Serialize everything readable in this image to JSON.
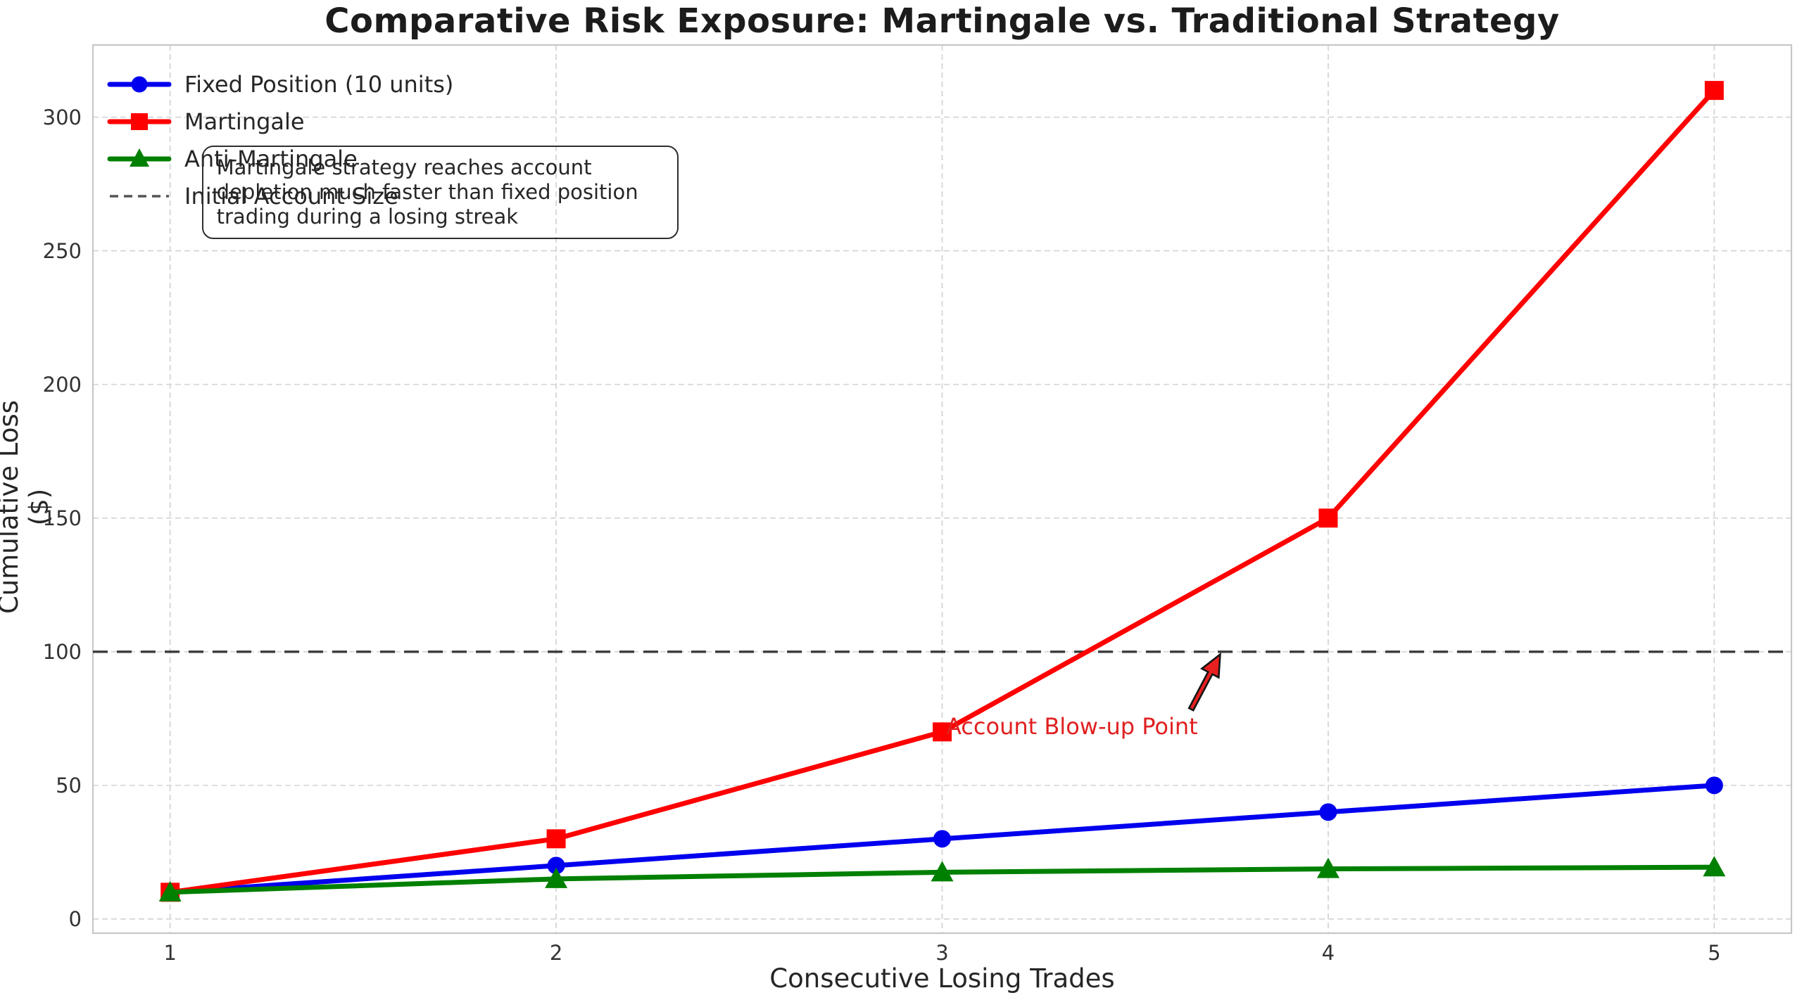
{
  "chart_data": {
    "type": "line",
    "title": "Comparative Risk Exposure: Martingale vs. Traditional Strategy",
    "xlabel": "Consecutive Losing Trades",
    "ylabel": "Cumulative Loss ($)",
    "x": [
      1,
      2,
      3,
      4,
      5
    ],
    "xtick_labels": [
      "1",
      "2",
      "3",
      "4",
      "5"
    ],
    "yticks": [
      0,
      50,
      100,
      150,
      200,
      250,
      300
    ],
    "xlim": [
      0.8,
      5.2
    ],
    "ylim": [
      -5.3,
      327
    ],
    "grid": true,
    "grid_style": "dashed",
    "legend_position": "upper-left",
    "legend_frame": false,
    "series": [
      {
        "name": "Fixed Position (10 units)",
        "marker": "circle",
        "color": "#0000ee",
        "values": [
          10,
          20,
          30,
          40,
          50
        ]
      },
      {
        "name": "Martingale",
        "marker": "square",
        "color": "#ff0000",
        "values": [
          10,
          30,
          70,
          150,
          310
        ]
      },
      {
        "name": "Anti-Martingale",
        "marker": "triangle",
        "color": "#008000",
        "values": [
          10,
          15,
          17.5,
          18.75,
          19.375
        ]
      }
    ],
    "reference_line": {
      "name": "Initial Account Size",
      "value": 100,
      "style": "dashed",
      "color": "#3a3a3a"
    },
    "annotation": {
      "label": "Account Blow-up Point",
      "color": "#e02020",
      "point": {
        "x": 3.72,
        "y": 99
      },
      "tail": {
        "x": 3.645,
        "y": 78.5
      },
      "text_pos": {
        "x": 3.01,
        "y": 77
      }
    },
    "note_box": {
      "text": "Martingale strategy reaches account\ndepletion much faster than fixed position\ntrading during a losing streak",
      "pos": {
        "x": 1.082,
        "y": 289.5
      }
    }
  }
}
